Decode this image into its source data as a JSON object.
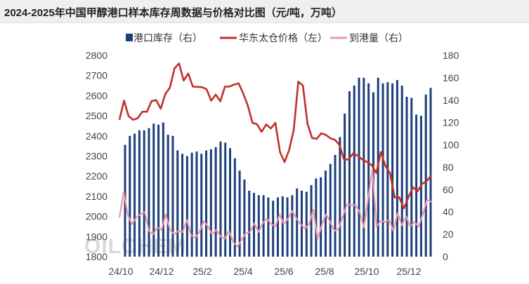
{
  "chart_data": {
    "type": "bar-line",
    "title": "2024-2025年中国甲醇港口样本库存周数据与价格对比图（元/吨，万吨）",
    "watermark": "OILCHEM",
    "x_tick_labels": [
      "24/10",
      "24/12",
      "25/2",
      "25/4",
      "25/6",
      "25/8",
      "25/10",
      "25/12"
    ],
    "left_axis": {
      "ylim": [
        1800,
        2800
      ],
      "ticks": [
        1800,
        1900,
        2000,
        2100,
        2200,
        2300,
        2400,
        2500,
        2600,
        2700,
        2800
      ]
    },
    "right_axis": {
      "ylim": [
        0,
        180
      ],
      "ticks": [
        0,
        20,
        40,
        60,
        80,
        100,
        120,
        140,
        160,
        180
      ]
    },
    "legend": [
      {
        "name": "港口库存（右）",
        "color": "#1c3f7a",
        "kind": "bar"
      },
      {
        "name": "华东太仓价格（左）",
        "color": "#c0302b",
        "kind": "line"
      },
      {
        "name": "到港量（右）",
        "color": "#ec98a8",
        "kind": "line"
      }
    ],
    "series": [
      {
        "name": "港口库存（右）",
        "axis": "right",
        "type": "bar",
        "values": [
          100,
          108,
          110,
          113,
          113,
          115,
          119,
          118,
          120,
          109,
          108,
          95,
          92,
          90,
          93,
          94,
          92,
          95,
          96,
          98,
          103,
          102,
          97,
          88,
          77,
          69,
          59,
          57,
          55,
          55,
          53,
          50,
          53,
          54,
          53,
          55,
          61,
          59,
          58,
          64,
          70,
          71,
          77,
          83,
          91,
          107,
          128,
          148,
          153,
          160,
          160,
          155,
          147,
          160,
          155,
          156,
          155,
          158,
          153,
          143,
          142,
          127,
          126,
          145,
          151
        ]
      },
      {
        "name": "华东太仓价格（左）",
        "axis": "left",
        "type": "line",
        "values": [
          2480,
          2575,
          2498,
          2480,
          2488,
          2520,
          2520,
          2573,
          2578,
          2535,
          2608,
          2640,
          2735,
          2760,
          2675,
          2710,
          2645,
          2644,
          2642,
          2632,
          2575,
          2605,
          2572,
          2645,
          2645,
          2655,
          2661,
          2610,
          2550,
          2465,
          2458,
          2420,
          2457,
          2437,
          2465,
          2320,
          2270,
          2330,
          2430,
          2670,
          2650,
          2460,
          2390,
          2385,
          2413,
          2405,
          2388,
          2380,
          2354,
          2280,
          2285,
          2314,
          2300,
          2282,
          2270,
          2255,
          2215,
          2320,
          2250,
          2215,
          2094,
          2095,
          2040,
          2095,
          2145,
          2125,
          2162,
          2175,
          2206
        ]
      },
      {
        "name": "到港量（右）",
        "axis": "right",
        "type": "line",
        "values": [
          35,
          58,
          37,
          29,
          35,
          38,
          40,
          23,
          20,
          26,
          24,
          38,
          24,
          20,
          23,
          22,
          33,
          19,
          17,
          22,
          32,
          27,
          20,
          24,
          18,
          16,
          23,
          13,
          9,
          15,
          21,
          22,
          30,
          22,
          30,
          34,
          29,
          27,
          38,
          29,
          34,
          41,
          34,
          29,
          25,
          29,
          42,
          16,
          28,
          38,
          31,
          23,
          25,
          36,
          47,
          46,
          46,
          40,
          26,
          52,
          78,
          27,
          32,
          31,
          33,
          23,
          39,
          28,
          36,
          27,
          31,
          27,
          38,
          51,
          49
        ]
      }
    ]
  }
}
